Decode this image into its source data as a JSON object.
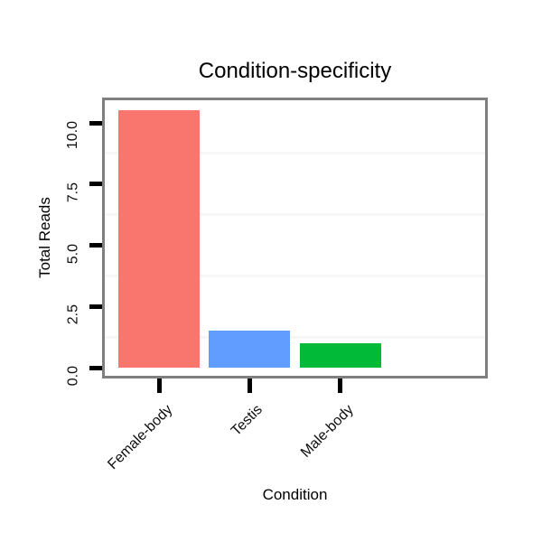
{
  "chart_data": {
    "type": "bar",
    "title": "Condition-specificity",
    "xlabel": "Condition",
    "ylabel": "Total Reads",
    "categories": [
      "Female-body",
      "Testis",
      "Male-body"
    ],
    "values": [
      10.5,
      1.5,
      1.0
    ],
    "colors": [
      "#F8766D",
      "#619CFF",
      "#00BA38"
    ],
    "y_ticks": [
      {
        "value": 0,
        "label": "0.0"
      },
      {
        "value": 2.5,
        "label": "2.5"
      },
      {
        "value": 5,
        "label": "5.0"
      },
      {
        "value": 7.5,
        "label": "7.5"
      },
      {
        "value": 10,
        "label": "10.0"
      }
    ],
    "y_minor_gridlines": [
      1.25,
      3.75,
      6.25,
      8.75
    ],
    "ylim": [
      0,
      10.9
    ],
    "grid": "horizontal-minor-only",
    "legend": "none",
    "bar_relative_width": 0.9,
    "styles": {
      "panel_border": "#7F7F7F",
      "panel_bg": "#FFFFFF",
      "page_bg": "#FFFFFF",
      "gridline": "#F7F7F7",
      "tick": "#000000",
      "title_text": "#000000",
      "tick_label_text": "#0D0D0D"
    }
  }
}
